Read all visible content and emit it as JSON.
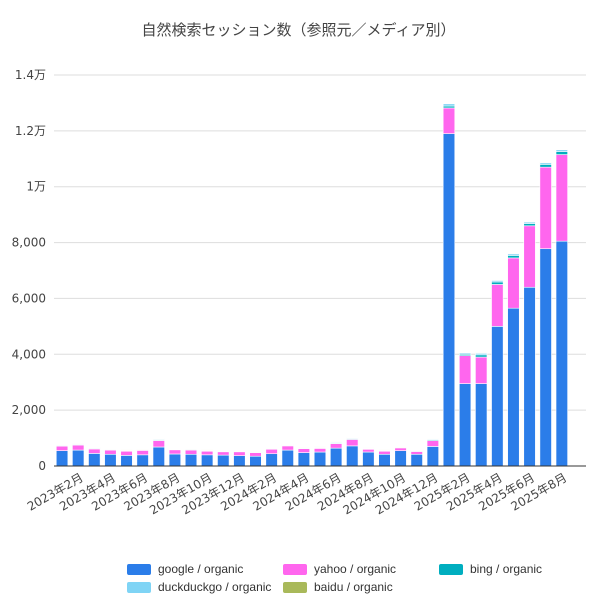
{
  "chart_data": {
    "type": "bar",
    "stacked": true,
    "title": "自然検索セッション数（参照元／メディア別）",
    "xlabel": "",
    "ylabel": "",
    "ylim": [
      0,
      14000
    ],
    "yticks": [
      {
        "value": 0,
        "label": "0"
      },
      {
        "value": 2000,
        "label": "2,000"
      },
      {
        "value": 4000,
        "label": "4,000"
      },
      {
        "value": 6000,
        "label": "6,000"
      },
      {
        "value": 8000,
        "label": "8,000"
      },
      {
        "value": 10000,
        "label": "1万"
      },
      {
        "value": 12000,
        "label": "1.2万"
      },
      {
        "value": 14000,
        "label": "1.4万"
      }
    ],
    "grid": true,
    "legend_position": "bottom",
    "categories": [
      "2023年1月",
      "2023年2月",
      "2023年3月",
      "2023年4月",
      "2023年5月",
      "2023年6月",
      "2023年7月",
      "2023年8月",
      "2023年9月",
      "2023年10月",
      "2023年11月",
      "2023年12月",
      "2024年1月",
      "2024年2月",
      "2024年3月",
      "2024年4月",
      "2024年5月",
      "2024年6月",
      "2024年7月",
      "2024年8月",
      "2024年9月",
      "2024年10月",
      "2024年11月",
      "2024年12月",
      "2025年1月",
      "2025年2月",
      "2025年3月",
      "2025年4月",
      "2025年5月",
      "2025年6月",
      "2025年7月",
      "2025年8月",
      "2025年9月"
    ],
    "x_tick_labels": [
      {
        "index": 1,
        "label": "2023年2月"
      },
      {
        "index": 3,
        "label": "2023年4月"
      },
      {
        "index": 5,
        "label": "2023年6月"
      },
      {
        "index": 7,
        "label": "2023年8月"
      },
      {
        "index": 9,
        "label": "2023年10月"
      },
      {
        "index": 11,
        "label": "2023年12月"
      },
      {
        "index": 13,
        "label": "2024年2月"
      },
      {
        "index": 15,
        "label": "2024年4月"
      },
      {
        "index": 17,
        "label": "2024年6月"
      },
      {
        "index": 19,
        "label": "2024年8月"
      },
      {
        "index": 21,
        "label": "2024年10月"
      },
      {
        "index": 23,
        "label": "2024年12月"
      },
      {
        "index": 25,
        "label": "2025年2月"
      },
      {
        "index": 27,
        "label": "2025年4月"
      },
      {
        "index": 29,
        "label": "2025年6月"
      },
      {
        "index": 31,
        "label": "2025年8月"
      }
    ],
    "series": [
      {
        "name": "google / organic",
        "color": "#2b7de9",
        "values": [
          550,
          570,
          450,
          420,
          380,
          400,
          680,
          430,
          420,
          400,
          390,
          370,
          350,
          440,
          570,
          480,
          500,
          640,
          720,
          500,
          420,
          550,
          420,
          700,
          11900,
          2950,
          2950,
          5000,
          5650,
          6400,
          7780,
          8050,
          0
        ]
      },
      {
        "name": "yahoo / organic",
        "color": "#ff66ee",
        "values": [
          160,
          180,
          160,
          150,
          150,
          160,
          230,
          150,
          150,
          130,
          120,
          140,
          130,
          160,
          150,
          140,
          130,
          160,
          230,
          100,
          110,
          100,
          100,
          210,
          920,
          1000,
          950,
          1500,
          1800,
          2200,
          2920,
          3100,
          0
        ]
      },
      {
        "name": "bing / organic",
        "color": "#00aebf",
        "values": [
          20,
          20,
          20,
          15,
          15,
          15,
          25,
          20,
          20,
          15,
          15,
          15,
          15,
          20,
          20,
          20,
          20,
          25,
          25,
          15,
          15,
          15,
          15,
          30,
          70,
          50,
          80,
          90,
          90,
          80,
          100,
          110,
          0
        ]
      },
      {
        "name": "duckduckgo / organic",
        "color": "#7fd4f5",
        "values": [
          25,
          25,
          25,
          25,
          20,
          20,
          30,
          25,
          25,
          20,
          20,
          20,
          20,
          25,
          25,
          25,
          25,
          30,
          30,
          20,
          20,
          20,
          20,
          30,
          80,
          50,
          60,
          60,
          60,
          60,
          60,
          70,
          0
        ]
      },
      {
        "name": "baidu / organic",
        "color": "#a9b95a",
        "values": [
          15,
          15,
          15,
          10,
          10,
          10,
          15,
          10,
          10,
          10,
          10,
          10,
          10,
          10,
          15,
          10,
          10,
          10,
          15,
          10,
          10,
          10,
          10,
          15,
          20,
          10,
          10,
          10,
          10,
          10,
          10,
          10,
          0
        ]
      }
    ]
  }
}
